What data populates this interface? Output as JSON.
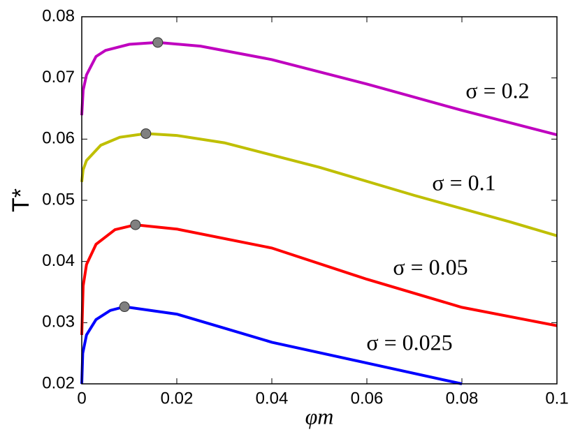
{
  "chart_data": {
    "type": "line",
    "x_label": "φm",
    "y_label": "T*",
    "xlim": [
      0,
      0.1
    ],
    "ylim": [
      0.02,
      0.08
    ],
    "xticks": [
      0,
      0.02,
      0.04,
      0.06,
      0.08,
      0.1
    ],
    "yticks": [
      0.02,
      0.03,
      0.04,
      0.05,
      0.06,
      0.07,
      0.08
    ],
    "series": [
      {
        "name": "σ = 0.2",
        "color": "#bf00bf",
        "x": [
          0,
          0.0003,
          0.001,
          0.003,
          0.005,
          0.01,
          0.016,
          0.025,
          0.04,
          0.06,
          0.08,
          0.1
        ],
        "values": [
          0.0639,
          0.068,
          0.0705,
          0.0735,
          0.0745,
          0.0755,
          0.0758,
          0.0752,
          0.073,
          0.069,
          0.0647,
          0.0607
        ],
        "peak": [
          0.016,
          0.0758
        ]
      },
      {
        "name": "σ = 0.1",
        "color": "#bfbf00",
        "x": [
          0,
          0.0003,
          0.001,
          0.004,
          0.008,
          0.0135,
          0.02,
          0.03,
          0.05,
          0.07,
          0.09,
          0.1
        ],
        "values": [
          0.053,
          0.055,
          0.0565,
          0.059,
          0.0603,
          0.0609,
          0.0606,
          0.0594,
          0.0554,
          0.0508,
          0.0465,
          0.0442
        ],
        "peak": [
          0.0135,
          0.0609
        ]
      },
      {
        "name": "σ = 0.05",
        "color": "#ff0000",
        "x": [
          0,
          0.0003,
          0.001,
          0.003,
          0.007,
          0.0113,
          0.02,
          0.04,
          0.06,
          0.08,
          0.1
        ],
        "values": [
          0.028,
          0.036,
          0.0395,
          0.0428,
          0.0452,
          0.046,
          0.0453,
          0.0422,
          0.0371,
          0.0325,
          0.0295
        ],
        "peak": [
          0.0113,
          0.046
        ]
      },
      {
        "name": "σ = 0.025",
        "color": "#0000ff",
        "x": [
          0,
          0.0002,
          0.001,
          0.003,
          0.006,
          0.009,
          0.02,
          0.03,
          0.04,
          0.06,
          0.08
        ],
        "values": [
          0.02,
          0.025,
          0.028,
          0.0305,
          0.032,
          0.0326,
          0.0314,
          0.0291,
          0.0268,
          0.0234,
          0.02
        ],
        "peak": [
          0.009,
          0.0326
        ]
      }
    ]
  }
}
